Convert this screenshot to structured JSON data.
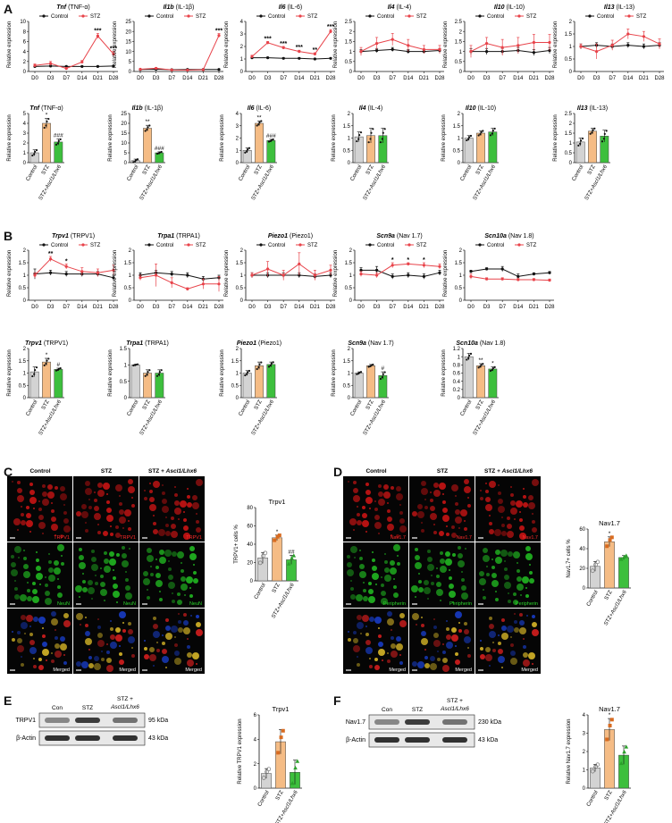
{
  "panel_letters": [
    "A",
    "B",
    "C",
    "D",
    "E",
    "F"
  ],
  "colors": {
    "control": "#111111",
    "stz": "#e8434a",
    "bar_control": "#d3d3d3",
    "bar_stz": "#f5bc85",
    "bar_ascl": "#3dbf3d",
    "stz_light": "#fbe3cf"
  },
  "legend": {
    "control": "Control",
    "stz": "STZ"
  },
  "y_label_rel": "Relative expression",
  "x_timepoints": [
    "D0",
    "D3",
    "D7",
    "D14",
    "D21",
    "D28"
  ],
  "bar_groups": [
    "Control",
    "STZ",
    "STZ+Ascl1/Lhx6"
  ],
  "chart_data": [
    {
      "id": "a1",
      "type": "line",
      "gene": "Tnf",
      "protein": "(TNF-α)",
      "ylim": [
        0,
        10
      ],
      "yticks": [
        0,
        2,
        4,
        6,
        8,
        10
      ],
      "x": [
        "D0",
        "D3",
        "D7",
        "D14",
        "D21",
        "D28"
      ],
      "series": [
        {
          "name": "Control",
          "values": [
            1,
            1.1,
            1,
            1,
            1,
            1.1
          ],
          "err": [
            0.1,
            0.1,
            0.1,
            0.1,
            0.1,
            0.1
          ]
        },
        {
          "name": "STZ",
          "values": [
            1.2,
            1.6,
            0.6,
            1.9,
            7.1,
            3.5
          ],
          "err": [
            0.3,
            0.4,
            0.2,
            0.3,
            0.5,
            0.5
          ]
        }
      ],
      "sig": [
        {
          "i": 4,
          "t": "***"
        },
        {
          "i": 5,
          "t": "***"
        }
      ]
    },
    {
      "id": "a2",
      "type": "line",
      "gene": "Il1b",
      "protein": "(IL-1β)",
      "ylim": [
        0,
        25
      ],
      "yticks": [
        0,
        5,
        10,
        15,
        20,
        25
      ],
      "x": [
        "D0",
        "D3",
        "D7",
        "D14",
        "D21",
        "D28"
      ],
      "series": [
        {
          "name": "Control",
          "values": [
            1,
            1.1,
            0.9,
            1,
            1,
            1
          ],
          "err": [
            0.2,
            0.2,
            0.2,
            0.2,
            0.2,
            0.2
          ]
        },
        {
          "name": "STZ",
          "values": [
            1.1,
            1.6,
            0.8,
            0.7,
            0.9,
            18
          ],
          "err": [
            0.3,
            0.4,
            0.2,
            0.2,
            0.3,
            1
          ]
        }
      ],
      "sig": [
        {
          "i": 5,
          "t": "***"
        }
      ]
    },
    {
      "id": "a3",
      "type": "line",
      "gene": "Il6",
      "protein": "(IL-6)",
      "ylim": [
        0,
        4
      ],
      "yticks": [
        0,
        1,
        2,
        3,
        4
      ],
      "x": [
        "D0",
        "D3",
        "D7",
        "D14",
        "D21",
        "D28"
      ],
      "series": [
        {
          "name": "Control",
          "values": [
            1.1,
            1.1,
            1.05,
            1.05,
            1,
            1.05
          ],
          "err": [
            0.05,
            0.05,
            0.05,
            0.05,
            0.05,
            0.05
          ]
        },
        {
          "name": "STZ",
          "values": [
            1.2,
            2.3,
            1.9,
            1.6,
            1.4,
            3.2
          ],
          "err": [
            0.1,
            0.1,
            0.1,
            0.1,
            0.1,
            0.15
          ]
        }
      ],
      "sig": [
        {
          "i": 1,
          "t": "***"
        },
        {
          "i": 2,
          "t": "***"
        },
        {
          "i": 3,
          "t": "***"
        },
        {
          "i": 4,
          "t": "**"
        },
        {
          "i": 5,
          "t": "***"
        }
      ]
    },
    {
      "id": "a4",
      "type": "line",
      "gene": "Il4",
      "protein": "(IL-4)",
      "ylim": [
        0,
        2.5
      ],
      "yticks": [
        0,
        0.5,
        1,
        1.5,
        2,
        2.5
      ],
      "x": [
        "D0",
        "D3",
        "D7",
        "D14",
        "D21",
        "D28"
      ],
      "series": [
        {
          "name": "Control",
          "values": [
            1,
            1.05,
            1.1,
            1,
            1,
            1.05
          ],
          "err": [
            0.1,
            0.1,
            0.1,
            0.1,
            0.1,
            0.1
          ]
        },
        {
          "name": "STZ",
          "values": [
            1,
            1.4,
            1.6,
            1.3,
            1.1,
            1.1
          ],
          "err": [
            0.2,
            0.3,
            0.3,
            0.3,
            0.2,
            0.2
          ]
        }
      ],
      "sig": []
    },
    {
      "id": "a5",
      "type": "line",
      "gene": "Il10",
      "protein": "(IL-10)",
      "ylim": [
        0,
        2.5
      ],
      "yticks": [
        0,
        0.5,
        1,
        1.5,
        2,
        2.5
      ],
      "x": [
        "D0",
        "D3",
        "D7",
        "D14",
        "D21",
        "D28"
      ],
      "series": [
        {
          "name": "Control",
          "values": [
            1,
            1,
            1,
            1.05,
            0.95,
            1.05
          ],
          "err": [
            0.15,
            0.15,
            0.15,
            0.15,
            0.15,
            0.15
          ]
        },
        {
          "name": "STZ",
          "values": [
            1,
            1.4,
            1.2,
            1.3,
            1.45,
            1.45
          ],
          "err": [
            0.3,
            0.3,
            0.4,
            0.4,
            0.4,
            0.4
          ]
        }
      ],
      "sig": []
    },
    {
      "id": "a6",
      "type": "line",
      "gene": "Il13",
      "protein": "(IL-13)",
      "ylim": [
        0,
        2
      ],
      "yticks": [
        0,
        0.5,
        1,
        1.5,
        2
      ],
      "x": [
        "D0",
        "D3",
        "D7",
        "D14",
        "D21",
        "D28"
      ],
      "series": [
        {
          "name": "Control",
          "values": [
            1,
            1.05,
            1,
            1.05,
            1,
            1.05
          ],
          "err": [
            0.1,
            0.1,
            0.1,
            0.1,
            0.1,
            0.1
          ]
        },
        {
          "name": "STZ",
          "values": [
            1,
            0.8,
            1.05,
            1.5,
            1.4,
            1.1
          ],
          "err": [
            0.1,
            0.3,
            0.2,
            0.2,
            0.2,
            0.2
          ]
        }
      ],
      "sig": []
    },
    {
      "id": "a7",
      "type": "bar",
      "gene": "Tnf",
      "protein": "(TNF-α)",
      "ylim": [
        0,
        5
      ],
      "yticks": [
        0,
        1,
        2,
        3,
        4,
        5
      ],
      "values": [
        1,
        4,
        2.1
      ],
      "err": [
        0.3,
        0.5,
        0.3
      ],
      "sig": [
        "",
        "*",
        "###"
      ]
    },
    {
      "id": "a8",
      "type": "bar",
      "gene": "Il1b",
      "protein": "(IL-1β)",
      "ylim": [
        0,
        25
      ],
      "yticks": [
        0,
        5,
        10,
        15,
        20,
        25
      ],
      "values": [
        1,
        17.5,
        5
      ],
      "err": [
        0.8,
        1.5,
        0.5
      ],
      "sig": [
        "",
        "**",
        "###"
      ]
    },
    {
      "id": "a9",
      "type": "bar",
      "gene": "Il6",
      "protein": "(IL-6)",
      "ylim": [
        0,
        4
      ],
      "yticks": [
        0,
        1,
        2,
        3,
        4
      ],
      "values": [
        1,
        3.2,
        1.8
      ],
      "err": [
        0.2,
        0.2,
        0.1
      ],
      "sig": [
        "",
        "**",
        "###"
      ]
    },
    {
      "id": "a10",
      "type": "bar",
      "gene": "Il4",
      "protein": "(IL-4)",
      "ylim": [
        0,
        2
      ],
      "yticks": [
        0,
        0.5,
        1,
        1.5,
        2
      ],
      "values": [
        1.05,
        1.1,
        1.1
      ],
      "err": [
        0.2,
        0.3,
        0.3
      ],
      "sig": [
        "",
        "",
        ""
      ]
    },
    {
      "id": "a11",
      "type": "bar",
      "gene": "Il10",
      "protein": "(IL-10)",
      "ylim": [
        0,
        2
      ],
      "yticks": [
        0,
        0.5,
        1,
        1.5,
        2
      ],
      "values": [
        1,
        1.2,
        1.25
      ],
      "err": [
        0.1,
        0.1,
        0.15
      ],
      "sig": [
        "",
        "",
        ""
      ]
    },
    {
      "id": "a12",
      "type": "bar",
      "gene": "Il13",
      "protein": "(IL-13)",
      "ylim": [
        0,
        2.5
      ],
      "yticks": [
        0,
        0.5,
        1,
        1.5,
        2,
        2.5
      ],
      "values": [
        1.05,
        1.6,
        1.35
      ],
      "err": [
        0.2,
        0.15,
        0.3
      ],
      "sig": [
        "",
        "",
        ""
      ]
    },
    {
      "id": "b1",
      "type": "line",
      "gene": "Trpv1",
      "protein": "(TRPV1)",
      "ylim": [
        0,
        2
      ],
      "yticks": [
        0,
        0.5,
        1,
        1.5,
        2
      ],
      "x": [
        "D0",
        "D3",
        "D7",
        "D14",
        "D21",
        "D28"
      ],
      "series": [
        {
          "name": "Control",
          "values": [
            1.05,
            1.1,
            1.05,
            1.05,
            1.05,
            0.9
          ],
          "err": [
            0.2,
            0.1,
            0.1,
            0.1,
            0.1,
            0.1
          ]
        },
        {
          "name": "STZ",
          "values": [
            1,
            1.65,
            1.35,
            1.15,
            1.1,
            1.2
          ],
          "err": [
            0.1,
            0.1,
            0.1,
            0.15,
            0.15,
            0.2
          ]
        }
      ],
      "sig": [
        {
          "i": 1,
          "t": "**"
        },
        {
          "i": 2,
          "t": "*"
        }
      ]
    },
    {
      "id": "b2",
      "type": "line",
      "gene": "Trpa1",
      "protein": "(TRPA1)",
      "ylim": [
        0,
        2
      ],
      "yticks": [
        0,
        0.5,
        1,
        1.5,
        2
      ],
      "x": [
        "D0",
        "D3",
        "D7",
        "D14",
        "D21",
        "D28"
      ],
      "series": [
        {
          "name": "Control",
          "values": [
            1,
            1.1,
            1.05,
            1,
            0.85,
            0.9
          ],
          "err": [
            0.1,
            0.1,
            0.1,
            0.1,
            0.1,
            0.1
          ]
        },
        {
          "name": "STZ",
          "values": [
            0.9,
            1,
            0.7,
            0.45,
            0.65,
            0.65
          ],
          "err": [
            0.1,
            0.45,
            0.2,
            0.05,
            0.2,
            0.3
          ]
        }
      ],
      "sig": []
    },
    {
      "id": "b3",
      "type": "line",
      "gene": "Piezo1",
      "protein": "(Piezo1)",
      "ylim": [
        0,
        2
      ],
      "yticks": [
        0,
        0.5,
        1,
        1.5,
        2
      ],
      "x": [
        "D0",
        "D3",
        "D7",
        "D14",
        "D21",
        "D28"
      ],
      "series": [
        {
          "name": "Control",
          "values": [
            1,
            1,
            1,
            1,
            0.95,
            1
          ],
          "err": [
            0.1,
            0.1,
            0.1,
            0.1,
            0.1,
            0.1
          ]
        },
        {
          "name": "STZ",
          "values": [
            1,
            1.25,
            1,
            1.45,
            1,
            1.2
          ],
          "err": [
            0.1,
            0.3,
            0.2,
            0.45,
            0.2,
            0.2
          ]
        }
      ],
      "sig": []
    },
    {
      "id": "b4",
      "type": "line",
      "gene": "Scn9a",
      "protein": "(Nav 1.7)",
      "ylim": [
        0,
        2
      ],
      "yticks": [
        0,
        0.5,
        1,
        1.5,
        2
      ],
      "x": [
        "D0",
        "D3",
        "D7",
        "D14",
        "D21",
        "D28"
      ],
      "series": [
        {
          "name": "Control",
          "values": [
            1.2,
            1.2,
            0.95,
            1,
            0.95,
            1.1
          ],
          "err": [
            0.1,
            0.15,
            0.1,
            0.1,
            0.1,
            0.1
          ]
        },
        {
          "name": "STZ",
          "values": [
            1.05,
            1,
            1.4,
            1.45,
            1.4,
            1.35
          ],
          "err": [
            0.1,
            0.1,
            0.1,
            0.05,
            0.1,
            0.1
          ]
        }
      ],
      "sig": [
        {
          "i": 2,
          "t": "*"
        },
        {
          "i": 3,
          "t": "*"
        },
        {
          "i": 4,
          "t": "*"
        }
      ]
    },
    {
      "id": "b5",
      "type": "line",
      "gene": "Scn10a",
      "protein": "(Nav 1.8)",
      "ylim": [
        0,
        2
      ],
      "yticks": [
        0,
        0.5,
        1,
        1.5,
        2
      ],
      "x": [
        "D0",
        "D3",
        "D7",
        "D14",
        "D21",
        "D28"
      ],
      "series": [
        {
          "name": "Control",
          "values": [
            1.15,
            1.25,
            1.25,
            0.95,
            1.05,
            1.1
          ],
          "err": [
            0.05,
            0.05,
            0.1,
            0.1,
            0.05,
            0.05
          ]
        },
        {
          "name": "STZ",
          "values": [
            0.95,
            0.85,
            0.85,
            0.82,
            0.82,
            0.8
          ],
          "err": [
            0.1,
            0.05,
            0.05,
            0.05,
            0.05,
            0.05
          ]
        }
      ],
      "sig": []
    },
    {
      "id": "b6",
      "type": "bar",
      "gene": "Trpv1",
      "protein": "(TRPV1)",
      "ylim": [
        0,
        2
      ],
      "yticks": [
        0,
        0.5,
        1,
        1.5,
        2
      ],
      "values": [
        1.05,
        1.45,
        1.15
      ],
      "err": [
        0.2,
        0.15,
        0.05
      ],
      "sig": [
        "",
        "*",
        "#"
      ]
    },
    {
      "id": "b7",
      "type": "bar",
      "gene": "Trpa1",
      "protein": "(TRPA1)",
      "ylim": [
        0,
        1.5
      ],
      "yticks": [
        0,
        0.5,
        1,
        1.5
      ],
      "values": [
        1,
        0.75,
        0.75
      ],
      "err": [
        0.02,
        0.1,
        0.1
      ],
      "sig": [
        "",
        "",
        ""
      ]
    },
    {
      "id": "b8",
      "type": "bar",
      "gene": "Piezo1",
      "protein": "(Piezo1)",
      "ylim": [
        0,
        2
      ],
      "yticks": [
        0,
        0.5,
        1,
        1.5,
        2
      ],
      "values": [
        1,
        1.3,
        1.35
      ],
      "err": [
        0.1,
        0.15,
        0.1
      ],
      "sig": [
        "",
        "",
        ""
      ]
    },
    {
      "id": "b9",
      "type": "bar",
      "gene": "Scn9a",
      "protein": "(Nav 1.7)",
      "ylim": [
        0,
        2
      ],
      "yticks": [
        0,
        0.5,
        1,
        1.5,
        2
      ],
      "values": [
        1,
        1.3,
        0.9
      ],
      "err": [
        0.05,
        0.05,
        0.15
      ],
      "sig": [
        "",
        "",
        "#"
      ]
    },
    {
      "id": "b10",
      "type": "bar",
      "gene": "Scn10a",
      "protein": "(Nav 1.8)",
      "ylim": [
        0,
        1.2
      ],
      "yticks": [
        0,
        0.2,
        0.4,
        0.6,
        0.8,
        1.0,
        1.2
      ],
      "values": [
        1,
        0.78,
        0.7
      ],
      "err": [
        0.08,
        0.05,
        0.05
      ],
      "sig": [
        "",
        "**",
        "*"
      ]
    },
    {
      "id": "c_bar",
      "type": "bar",
      "title": "Trpv1",
      "ylabel": "TRPV1+ cells %",
      "ylim": [
        0,
        80
      ],
      "yticks": [
        0,
        20,
        40,
        60,
        80
      ],
      "values": [
        25,
        47,
        23
      ],
      "err": [
        6,
        3,
        5
      ],
      "sig": [
        "",
        "*",
        "##"
      ]
    },
    {
      "id": "d_bar",
      "type": "bar",
      "title": "Nav1.7",
      "ylabel": "Nav1.7+ cells %",
      "ylim": [
        0,
        60
      ],
      "yticks": [
        0,
        20,
        40,
        60
      ],
      "values": [
        22,
        47,
        31
      ],
      "err": [
        5,
        5,
        2
      ],
      "sig": [
        "",
        "*",
        ""
      ]
    },
    {
      "id": "e_bar",
      "type": "bar",
      "title": "Trpv1",
      "ylabel": "Relative TRPV1 expression",
      "ylim": [
        0,
        6
      ],
      "yticks": [
        0,
        2,
        4,
        6
      ],
      "values": [
        1.2,
        3.8,
        1.3
      ],
      "err": [
        0.4,
        1,
        1
      ],
      "sig": [
        "",
        "",
        ""
      ]
    },
    {
      "id": "f_bar",
      "type": "bar",
      "title": "Nav1.7",
      "ylabel": "Relative Nav1.7 expression",
      "ylim": [
        0,
        4
      ],
      "yticks": [
        0,
        1,
        2,
        3,
        4
      ],
      "values": [
        1.1,
        3.2,
        1.8
      ],
      "err": [
        0.2,
        0.6,
        0.5
      ],
      "sig": [
        "",
        "*",
        ""
      ]
    }
  ],
  "panel_c": {
    "cols": [
      "Control",
      "STZ",
      "STZ + Ascl1/Lhx6"
    ],
    "rows": [
      "TRPV1",
      "NeuN",
      "Merged"
    ]
  },
  "panel_d": {
    "cols": [
      "Control",
      "STZ",
      "STZ + Ascl1/Lhx6"
    ],
    "rows": [
      "Nav1.7",
      "Peripherin",
      "Merged"
    ]
  },
  "blot_e": {
    "headers": [
      "Con",
      "STZ",
      "STZ +",
      "Ascl1/Lhx6"
    ],
    "rows": [
      {
        "label": "TRPV1",
        "kda": "95 kDa"
      },
      {
        "label": "β-Actin",
        "kda": "43 kDa"
      }
    ]
  },
  "blot_f": {
    "headers": [
      "Con",
      "STZ",
      "STZ +",
      "Ascl1/Lhx6"
    ],
    "rows": [
      {
        "label": "Nav1.7",
        "kda": "230 kDa"
      },
      {
        "label": "β-Actin",
        "kda": "43 kDa"
      }
    ]
  }
}
